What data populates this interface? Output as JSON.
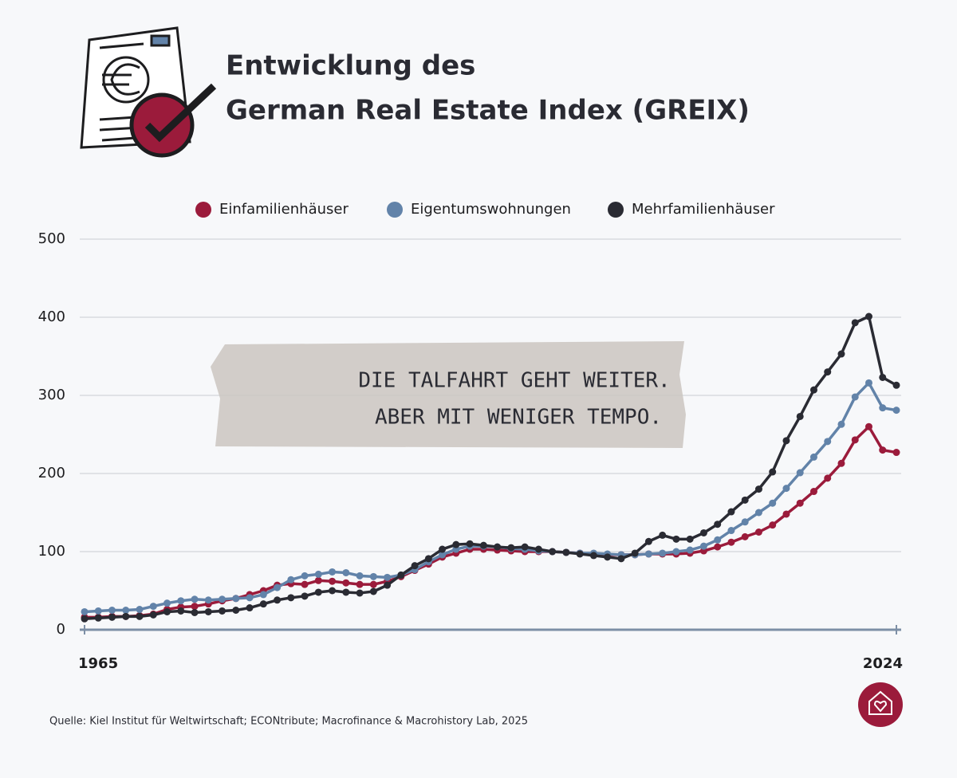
{
  "chart_data": {
    "type": "line",
    "title": [
      "Entwicklung des",
      "German Real Estate Index (GREIX)"
    ],
    "annotation": [
      "DIE TALFAHRT GEHT WEITER.",
      "ABER MIT WENIGER TEMPO."
    ],
    "source": "Quelle: Kiel Institut für Weltwirtschaft; ECONtribute; Macrofinance & Macrohistory Lab, 2025",
    "x": [
      1965,
      1966,
      1967,
      1968,
      1969,
      1970,
      1971,
      1972,
      1973,
      1974,
      1975,
      1976,
      1977,
      1978,
      1979,
      1980,
      1981,
      1982,
      1983,
      1984,
      1985,
      1986,
      1987,
      1988,
      1989,
      1990,
      1991,
      1992,
      1993,
      1994,
      1995,
      1996,
      1997,
      1998,
      1999,
      2000,
      2001,
      2002,
      2003,
      2004,
      2005,
      2006,
      2007,
      2008,
      2009,
      2010,
      2011,
      2012,
      2013,
      2014,
      2015,
      2016,
      2017,
      2018,
      2019,
      2020,
      2021,
      2022,
      2023,
      2024
    ],
    "xlim": [
      1965,
      2024
    ],
    "xticks": [
      1965,
      2024
    ],
    "ylim": [
      0,
      500
    ],
    "yticks": [
      0,
      100,
      200,
      300,
      400,
      500
    ],
    "grid": true,
    "legend": "top",
    "series": [
      {
        "name": "Einfamilienhäuser",
        "color": "#9b1b3b",
        "values": [
          16,
          16,
          17,
          17,
          18,
          20,
          26,
          29,
          30,
          33,
          37,
          40,
          45,
          50,
          57,
          59,
          58,
          63,
          62,
          60,
          58,
          58,
          62,
          68,
          76,
          84,
          93,
          98,
          103,
          103,
          102,
          101,
          100,
          100,
          100,
          99,
          98,
          97,
          96,
          96,
          96,
          97,
          97,
          97,
          98,
          101,
          106,
          112,
          119,
          125,
          134,
          148,
          162,
          177,
          194,
          213,
          243,
          260,
          230,
          227
        ]
      },
      {
        "name": "Eigentumswohnungen",
        "color": "#6283a9",
        "values": [
          23,
          24,
          25,
          25,
          26,
          30,
          34,
          37,
          39,
          38,
          39,
          40,
          41,
          45,
          54,
          64,
          69,
          71,
          74,
          73,
          69,
          68,
          67,
          70,
          77,
          87,
          96,
          103,
          107,
          107,
          106,
          104,
          103,
          101,
          100,
          99,
          98,
          98,
          97,
          96,
          96,
          97,
          98,
          100,
          102,
          107,
          115,
          127,
          138,
          150,
          162,
          181,
          201,
          221,
          241,
          263,
          298,
          316,
          284,
          281
        ]
      },
      {
        "name": "Mehrfamilienhäuser",
        "color": "#2a2b33",
        "values": [
          14,
          15,
          16,
          17,
          17,
          19,
          23,
          24,
          22,
          23,
          24,
          25,
          28,
          33,
          38,
          41,
          43,
          48,
          50,
          48,
          47,
          49,
          57,
          70,
          82,
          91,
          103,
          109,
          110,
          108,
          106,
          105,
          106,
          103,
          100,
          99,
          97,
          95,
          93,
          91,
          98,
          113,
          121,
          116,
          116,
          124,
          135,
          151,
          166,
          180,
          202,
          242,
          273,
          307,
          330,
          353,
          393,
          401,
          323,
          313
        ]
      }
    ]
  }
}
